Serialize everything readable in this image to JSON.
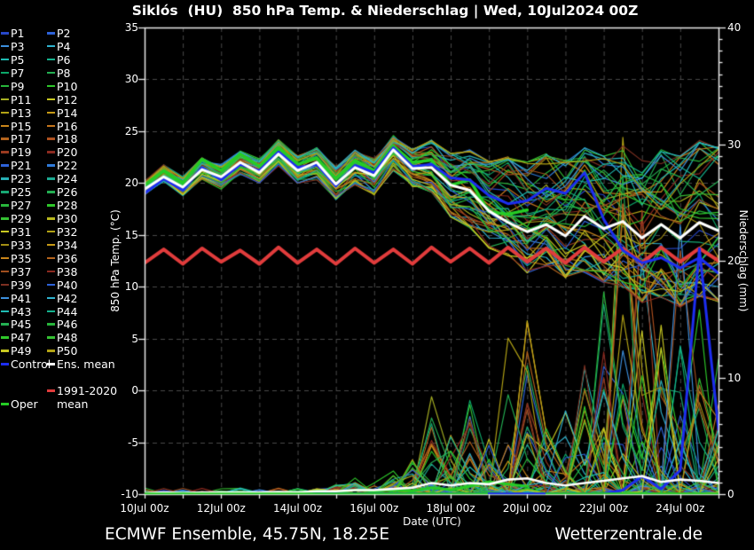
{
  "title": "Siklós  (HU)  850 hPa Temp. & Niederschlag | Wed, 10Jul2024 00Z",
  "footer": {
    "left": "ECMWF Ensemble, 45.75N, 18.25E",
    "right": "Wetterzentrale.de"
  },
  "colors": {
    "background": "#000000",
    "grid": "#4a4a4a",
    "axis": "#e8e8e8",
    "text": "#ffffff"
  },
  "axes": {
    "temp": {
      "label": "850 hPa Temp. (°C)",
      "min": -10,
      "max": 35,
      "tick_step": 5
    },
    "precip": {
      "label": "Niederschlag (mm)",
      "min": 0,
      "max": 40,
      "major_tick_step": 10,
      "minor_tick_step": 1
    },
    "x": {
      "label": "Date (UTC)",
      "days_total": 15,
      "label_every_days": 2,
      "gridline_every_days": 1,
      "tick_labels": [
        "10Jul 00z",
        "12Jul 00z",
        "14Jul 00z",
        "16Jul 00z",
        "18Jul 00z",
        "20Jul 00z",
        "22Jul 00z",
        "24Jul 00z"
      ]
    }
  },
  "legend": {
    "members": [
      {
        "label": "P1",
        "color": "#2747c8"
      },
      {
        "label": "P2",
        "color": "#2d62d9"
      },
      {
        "label": "P3",
        "color": "#3c8fdd"
      },
      {
        "label": "P4",
        "color": "#2fb3cf"
      },
      {
        "label": "P5",
        "color": "#1fbdb4"
      },
      {
        "label": "P6",
        "color": "#15b38e"
      },
      {
        "label": "P7",
        "color": "#0ca96a"
      },
      {
        "label": "P8",
        "color": "#23af52"
      },
      {
        "label": "P9",
        "color": "#27b53b"
      },
      {
        "label": "P10",
        "color": "#2ec72a"
      },
      {
        "label": "P11",
        "color": "#a8b123"
      },
      {
        "label": "P12",
        "color": "#c9c921"
      },
      {
        "label": "P13",
        "color": "#b3a315"
      },
      {
        "label": "P14",
        "color": "#c79a16"
      },
      {
        "label": "P15",
        "color": "#c9851a"
      },
      {
        "label": "P16",
        "color": "#c4741c"
      },
      {
        "label": "P17",
        "color": "#b5641d"
      },
      {
        "label": "P18",
        "color": "#af511f"
      },
      {
        "label": "P19",
        "color": "#9a3a20"
      },
      {
        "label": "P20",
        "color": "#8c2a20"
      },
      {
        "label": "P21",
        "color": "#2d62d9"
      },
      {
        "label": "P22",
        "color": "#2f7bd9"
      },
      {
        "label": "P23",
        "color": "#27b0b6"
      },
      {
        "label": "P24",
        "color": "#1cab92"
      },
      {
        "label": "P25",
        "color": "#17a873"
      },
      {
        "label": "P26",
        "color": "#23af52"
      },
      {
        "label": "P27",
        "color": "#27b53b"
      },
      {
        "label": "P28",
        "color": "#2ec72a"
      },
      {
        "label": "P29",
        "color": "#35c133"
      },
      {
        "label": "P30",
        "color": "#b9b91e"
      },
      {
        "label": "P31",
        "color": "#c9c921"
      },
      {
        "label": "P32",
        "color": "#b3a315"
      },
      {
        "label": "P33",
        "color": "#a38f14"
      },
      {
        "label": "P34",
        "color": "#c79a16"
      },
      {
        "label": "P35",
        "color": "#c9851a"
      },
      {
        "label": "P36",
        "color": "#b5641d"
      },
      {
        "label": "P37",
        "color": "#a04f1e"
      },
      {
        "label": "P38",
        "color": "#8c2a20"
      },
      {
        "label": "P39",
        "color": "#7d3022"
      },
      {
        "label": "P40",
        "color": "#2d62d9"
      },
      {
        "label": "P41",
        "color": "#3c8fdd"
      },
      {
        "label": "P42",
        "color": "#2fb3cf"
      },
      {
        "label": "P43",
        "color": "#1fbdb4"
      },
      {
        "label": "P44",
        "color": "#15b38e"
      },
      {
        "label": "P45",
        "color": "#23af52"
      },
      {
        "label": "P46",
        "color": "#27b53b"
      },
      {
        "label": "P47",
        "color": "#2ec72a"
      },
      {
        "label": "P48",
        "color": "#35c133"
      },
      {
        "label": "P49",
        "color": "#c9c921"
      },
      {
        "label": "P50",
        "color": "#b3a315"
      }
    ],
    "control": {
      "label": "Control",
      "color": "#1c2df0"
    },
    "ens_mean": {
      "label": "Ens. mean",
      "color": "#ffffff"
    },
    "clim_mean": {
      "label": "1991-2020 mean",
      "label_lines": [
        "1991-2020",
        "mean"
      ],
      "color": "#e13c3c"
    },
    "oper": {
      "label": "Oper",
      "color": "#25cc25"
    }
  },
  "chart_data": {
    "type": "line",
    "x_step_hours": 12,
    "x_labels": [
      "10Jul 00z",
      "10Jul 12z",
      "11Jul 00z",
      "11Jul 12z",
      "12Jul 00z",
      "12Jul 12z",
      "13Jul 00z",
      "13Jul 12z",
      "14Jul 00z",
      "14Jul 12z",
      "15Jul 00z",
      "15Jul 12z",
      "16Jul 00z",
      "16Jul 12z",
      "17Jul 00z",
      "17Jul 12z",
      "18Jul 00z",
      "18Jul 12z",
      "19Jul 00z",
      "19Jul 12z",
      "20Jul 00z",
      "20Jul 12z",
      "21Jul 00z",
      "21Jul 12z",
      "22Jul 00z",
      "22Jul 12z",
      "23Jul 00z",
      "23Jul 12z",
      "24Jul 00z",
      "24Jul 12z",
      "25Jul 00z"
    ],
    "temp_series": {
      "ens_mean": [
        19.4,
        20.6,
        19.6,
        21.3,
        20.6,
        22.0,
        21.0,
        22.8,
        21.2,
        22.0,
        19.9,
        21.5,
        20.7,
        23.2,
        21.4,
        21.5,
        19.8,
        19.3,
        17.3,
        16.2,
        15.3,
        16.0,
        14.9,
        16.8,
        15.6,
        16.3,
        14.7,
        16.0,
        14.7,
        16.2,
        15.4
      ],
      "control": [
        19.0,
        20.4,
        19.3,
        21.5,
        20.3,
        21.8,
        21.2,
        23.0,
        21.5,
        21.8,
        19.7,
        21.7,
        21.0,
        23.4,
        21.6,
        21.8,
        20.5,
        20.3,
        18.8,
        18.0,
        18.3,
        19.5,
        19.0,
        21.0,
        16.5,
        13.5,
        12.3,
        12.8,
        11.8,
        12.8,
        11.3
      ],
      "oper": [
        19.8,
        21.2,
        20.0,
        22.3,
        21.2,
        22.8,
        21.6,
        23.4,
        21.8,
        22.4,
        20.4,
        22.2,
        21.2,
        23.6,
        22.0,
        22.2,
        19.8,
        20.3,
        17.2,
        17.0,
        17.4
      ],
      "clim_mean": [
        12.3,
        13.6,
        12.2,
        13.7,
        12.4,
        13.5,
        12.2,
        13.8,
        12.3,
        13.6,
        12.2,
        13.7,
        12.3,
        13.6,
        12.2,
        13.8,
        12.4,
        13.7,
        12.3,
        13.8,
        12.4,
        13.7,
        12.3,
        13.8,
        12.4,
        13.7,
        12.3,
        13.8,
        12.4,
        13.7,
        12.5
      ]
    },
    "precip_series": {
      "ens_mean": [
        0.05,
        0.1,
        0.05,
        0.1,
        0.1,
        0.1,
        0.1,
        0.15,
        0.1,
        0.2,
        0.2,
        0.3,
        0.3,
        0.4,
        0.5,
        0.9,
        0.7,
        0.9,
        0.8,
        1.2,
        1.3,
        0.9,
        0.7,
        0.9,
        1.1,
        1.3,
        1.5,
        1.0,
        1.2,
        1.1,
        0.9
      ],
      "control": [
        0,
        0,
        0,
        0,
        0,
        0,
        0,
        0,
        0,
        0,
        0,
        0,
        0,
        0,
        0,
        0,
        0,
        0,
        0,
        0,
        0,
        0,
        0,
        0,
        0,
        0.3,
        1.5,
        0.4,
        2.0,
        21.0,
        5.5
      ],
      "oper": [
        0,
        0,
        0,
        0,
        0,
        0.1,
        0,
        0.1,
        0,
        0.2,
        0.1,
        0.3,
        0.2,
        0.3,
        0.2,
        0.5,
        0.3,
        0.6,
        1.0,
        0.8,
        0.6
      ]
    },
    "members": {
      "count": 50,
      "seed": 11,
      "temp_envelope_low": [
        18.6,
        20.0,
        18.8,
        20.4,
        19.4,
        20.8,
        19.8,
        21.6,
        19.8,
        20.3,
        18.4,
        19.8,
        18.8,
        21.2,
        19.6,
        19.0,
        16.5,
        15.5,
        13.5,
        12.5,
        11.0,
        11.5,
        10.5,
        11.0,
        10.0,
        9.5,
        8.0,
        8.5,
        7.5,
        8.5,
        8.0
      ],
      "temp_envelope_high": [
        20.2,
        21.8,
        20.6,
        22.5,
        21.8,
        23.2,
        22.4,
        24.2,
        22.6,
        23.4,
        21.6,
        23.2,
        22.4,
        24.6,
        23.4,
        24.2,
        23.0,
        23.4,
        22.4,
        22.8,
        22.4,
        23.2,
        22.6,
        23.8,
        23.0,
        24.2,
        22.8,
        23.8,
        23.2,
        24.6,
        24.0
      ],
      "precip_spike_max": [
        0.3,
        0.3,
        0.3,
        0.3,
        0.3,
        0.4,
        0.4,
        0.4,
        0.4,
        0.5,
        1.0,
        1.5,
        1.0,
        2.0,
        3.0,
        8.5,
        6.0,
        8.0,
        5.5,
        16.0,
        16.0,
        10.0,
        8.0,
        12.0,
        20.0,
        33.0,
        25.0,
        15.0,
        25.0,
        18.0,
        12.0
      ]
    }
  }
}
